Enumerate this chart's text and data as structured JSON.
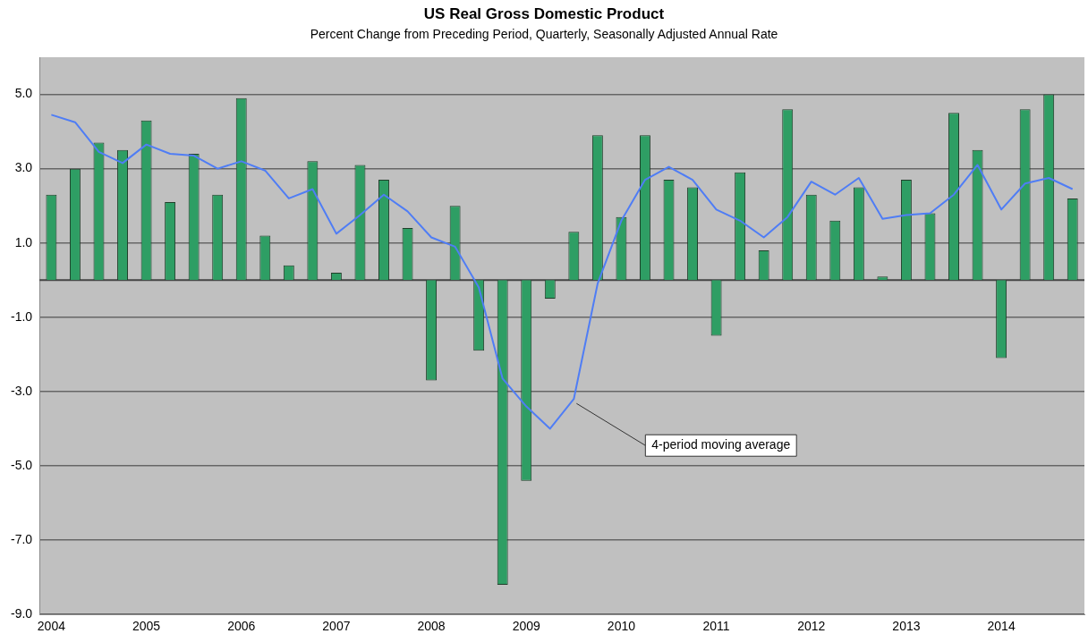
{
  "chart_data": {
    "type": "bar",
    "title": "US Real Gross Domestic Product",
    "subtitle": "Percent Change from Preceding Period, Quarterly, Seasonally Adjusted Annual Rate",
    "categories": [
      "2004",
      null,
      null,
      null,
      "2005",
      null,
      null,
      null,
      "2006",
      null,
      null,
      null,
      "2007",
      null,
      null,
      null,
      "2008",
      null,
      null,
      null,
      "2009",
      null,
      null,
      null,
      "2010",
      null,
      null,
      null,
      "2011",
      null,
      null,
      null,
      "2012",
      null,
      null,
      null,
      "2013",
      null,
      null,
      null,
      "2014",
      null,
      null,
      null
    ],
    "series": [
      {
        "color": "#2e9e64",
        "values": [
          2.3,
          3.0,
          3.7,
          3.5,
          4.3,
          2.1,
          3.4,
          2.3,
          4.9,
          1.2,
          0.4,
          3.2,
          0.2,
          3.1,
          2.7,
          1.4,
          -2.7,
          2.0,
          -1.9,
          -8.2,
          -5.4,
          -0.5,
          1.3,
          3.9,
          1.7,
          3.9,
          2.7,
          2.5,
          -1.5,
          2.9,
          0.8,
          4.6,
          2.3,
          1.6,
          2.5,
          0.1,
          2.7,
          1.8,
          4.5,
          3.5,
          -2.1,
          4.6,
          5.0,
          2.2
        ]
      },
      {
        "type": "line",
        "name": "4-period moving average",
        "color": "#4f7df5",
        "values": [
          4.45,
          4.25,
          3.45,
          3.15,
          3.65,
          3.4,
          3.35,
          3.0,
          3.2,
          2.95,
          2.2,
          2.45,
          1.25,
          1.75,
          2.3,
          1.85,
          1.15,
          0.9,
          -0.2,
          -2.65,
          -3.4,
          -4.0,
          -3.2,
          -0.1,
          1.6,
          2.7,
          3.05,
          2.7,
          1.9,
          1.6,
          1.15,
          1.7,
          2.65,
          2.3,
          2.75,
          1.65,
          1.75,
          1.8,
          2.3,
          3.1,
          1.9,
          2.6,
          2.75,
          2.45
        ]
      }
    ],
    "ylim": [
      -9,
      6
    ],
    "yticks": [
      {
        "value": -9,
        "label": "-9.0"
      },
      {
        "value": -7,
        "label": "-7.0"
      },
      {
        "value": -5,
        "label": "-5.0"
      },
      {
        "value": -3,
        "label": "-3.0"
      },
      {
        "value": -1,
        "label": "-1.0"
      },
      {
        "value": 1,
        "label": "1.0"
      },
      {
        "value": 3,
        "label": "3.0"
      },
      {
        "value": 5,
        "label": "5.0"
      }
    ],
    "grid": "y",
    "legend": false,
    "marker": "none",
    "line_style": "solid"
  }
}
